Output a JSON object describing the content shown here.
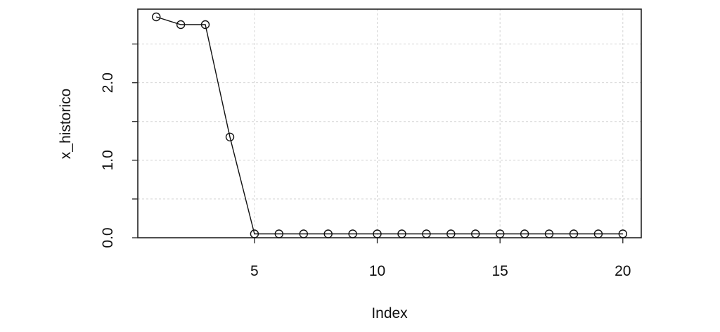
{
  "chart_data": {
    "type": "line",
    "xlabel": "Index",
    "ylabel": "x_historico",
    "x": [
      1,
      2,
      3,
      4,
      5,
      6,
      7,
      8,
      9,
      10,
      11,
      12,
      13,
      14,
      15,
      16,
      17,
      18,
      19,
      20
    ],
    "values": [
      2.85,
      2.75,
      2.75,
      1.3,
      0.05,
      0.05,
      0.05,
      0.05,
      0.05,
      0.05,
      0.05,
      0.05,
      0.05,
      0.05,
      0.05,
      0.05,
      0.05,
      0.05,
      0.05,
      0.05
    ],
    "xlim": [
      0.25,
      20.75
    ],
    "ylim": [
      0.0,
      2.95
    ],
    "xticks": [
      5,
      10,
      15,
      20
    ],
    "xtick_labels": [
      "5",
      "10",
      "15",
      "20"
    ],
    "yticks": [
      0.0,
      0.5,
      1.0,
      1.5,
      2.0,
      2.5
    ],
    "ytick_labels": [
      "0.0",
      "",
      "1.0",
      "",
      "2.0",
      ""
    ],
    "xgrid": [
      5,
      10,
      15,
      20
    ],
    "ygrid": [
      0.0,
      0.5,
      1.0,
      1.5,
      2.0,
      2.5
    ],
    "grid": true,
    "marker": "open-circle",
    "line_color": "#111111",
    "grid_color": "#d4d4d4"
  }
}
